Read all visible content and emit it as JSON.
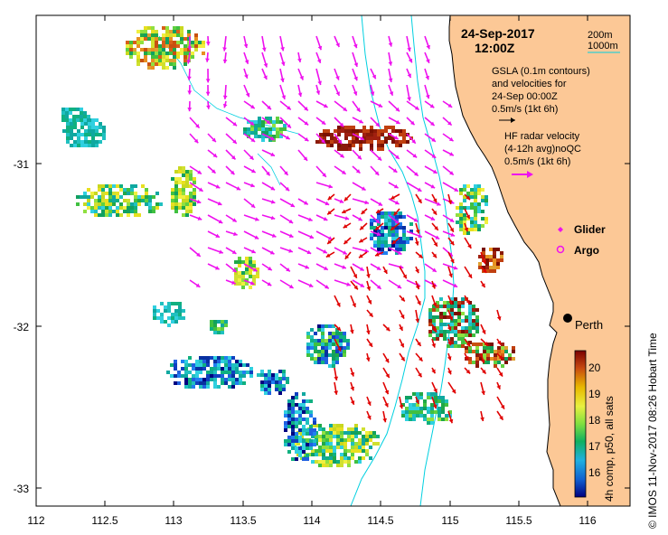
{
  "header": {
    "date": "24-Sep-2017",
    "time": "12:00Z"
  },
  "contour_legend": {
    "label_200": "200m",
    "label_1000": "1000m",
    "line_color": "#00d0e0"
  },
  "gsla": {
    "line1": "GSLA (0.1m contours)",
    "line2": "and velocities for",
    "line3": "24-Sep 00:00Z",
    "scale": "0.5m/s (1kt 6h)",
    "arrow_color": "#000000"
  },
  "hf_radar": {
    "line1": "HF radar velocity",
    "line2": "(4-12h avg)noQC",
    "scale": "0.5m/s (1kt 6h)",
    "arrow_color": "#e000e0"
  },
  "markers": {
    "glider": "Glider",
    "argo": "Argo",
    "city": "Perth"
  },
  "colorbar": {
    "title": "4h comp, p50, all sats",
    "ticks": [
      "20",
      "19",
      "18",
      "17",
      "16"
    ]
  },
  "credit": "©  IMOS 11-Nov-2017 08:26 Hobart Time",
  "axes": {
    "x_ticks": [
      "112",
      "112.5",
      "113",
      "113.5",
      "114",
      "114.5",
      "115",
      "115.5",
      "116"
    ],
    "y_ticks": [
      "-31",
      "-32",
      "-33"
    ]
  },
  "colors": {
    "land": "#fcc896",
    "sst_arrow": "#e00000",
    "radar_arrow": "#ee11ee",
    "contour": "#00d0e0"
  },
  "map_data": {
    "lon_range": [
      112,
      116.3
    ],
    "lat_range": [
      -33.15,
      -30.1
    ],
    "perth": [
      115.86,
      -31.95
    ]
  }
}
